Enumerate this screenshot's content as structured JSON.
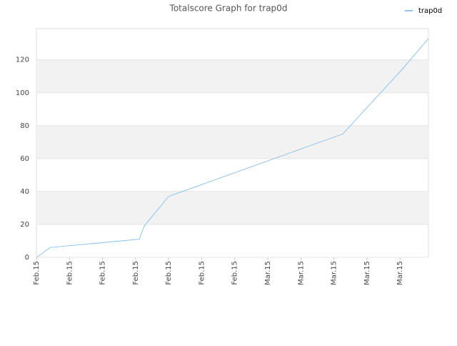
{
  "chart_data": {
    "type": "line",
    "title": "Totalscore Graph for trap0d",
    "series": [
      {
        "name": "trap0d",
        "color": "#8fc3ee",
        "x": [
          0,
          0.15,
          0.41,
          3.11,
          3.26,
          4.0,
          9.27,
          11.1,
          11.86
        ],
        "values": [
          0,
          2,
          6,
          11,
          19,
          37,
          75,
          115,
          133
        ]
      }
    ],
    "xlim": [
      0,
      11.86
    ],
    "xticks": [
      {
        "value": 0,
        "label": "Feb.15"
      },
      {
        "value": 1,
        "label": "Feb.15"
      },
      {
        "value": 2,
        "label": "Feb.15"
      },
      {
        "value": 3,
        "label": "Feb.15"
      },
      {
        "value": 4,
        "label": "Feb.15"
      },
      {
        "value": 5,
        "label": "Feb.15"
      },
      {
        "value": 6,
        "label": "Feb.15"
      },
      {
        "value": 7,
        "label": "Mar.15"
      },
      {
        "value": 8,
        "label": "Mar.15"
      },
      {
        "value": 9,
        "label": "Mar.15"
      },
      {
        "value": 10,
        "label": "Mar.15"
      },
      {
        "value": 11,
        "label": "Mar.15"
      }
    ],
    "ylim": [
      0,
      139
    ],
    "yticks": [
      0,
      20,
      40,
      60,
      80,
      100,
      120
    ],
    "grid": true,
    "legend": "top-right"
  }
}
